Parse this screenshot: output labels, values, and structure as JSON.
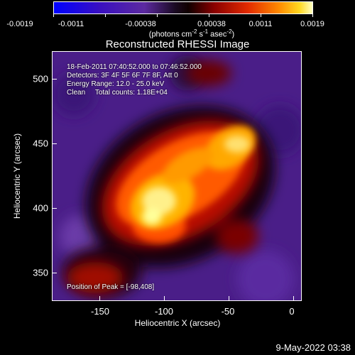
{
  "colorbar": {
    "ticks": [
      "-0.0019",
      "-0.0011",
      "-0.00038",
      "0.00038",
      "0.0011",
      "0.0019"
    ],
    "unit_prefix": "(photons cm",
    "unit_exp1": "-2",
    "unit_mid": " s",
    "unit_exp2": "-1",
    "unit_mid2": " asec",
    "unit_exp3": "-2",
    "unit_suffix": ")"
  },
  "title": "Reconstructed RHESSI Image",
  "info": {
    "line1": "18-Feb-2011 07:40:52.000 to 07:46:52.000",
    "line2": "Detectors: 3F 4F 5F 6F 7F 8F, Att 0",
    "line3": "Energy Range: 12.0 - 25.0 keV",
    "line4": "Clean     Total counts: 1.18E+04",
    "peak": "Position of Peak = [-98,408]"
  },
  "axes": {
    "x_label": "Heliocentric X (arcsec)",
    "y_label": "Heliocentric Y (arcsec)",
    "x_ticks": [
      "-150",
      "-100",
      "-50",
      "0"
    ],
    "y_ticks": [
      "500",
      "450",
      "400",
      "350"
    ]
  },
  "footer": "9-May-2022 03:38",
  "colors": {
    "background": "#000000",
    "foreground": "#ffffff",
    "colormap": [
      "#0000ff",
      "#3a0a8c",
      "#5a2a9a",
      "#000000",
      "#7a0000",
      "#d21c00",
      "#ff6a00",
      "#ffc800",
      "#ffffb0"
    ]
  }
}
